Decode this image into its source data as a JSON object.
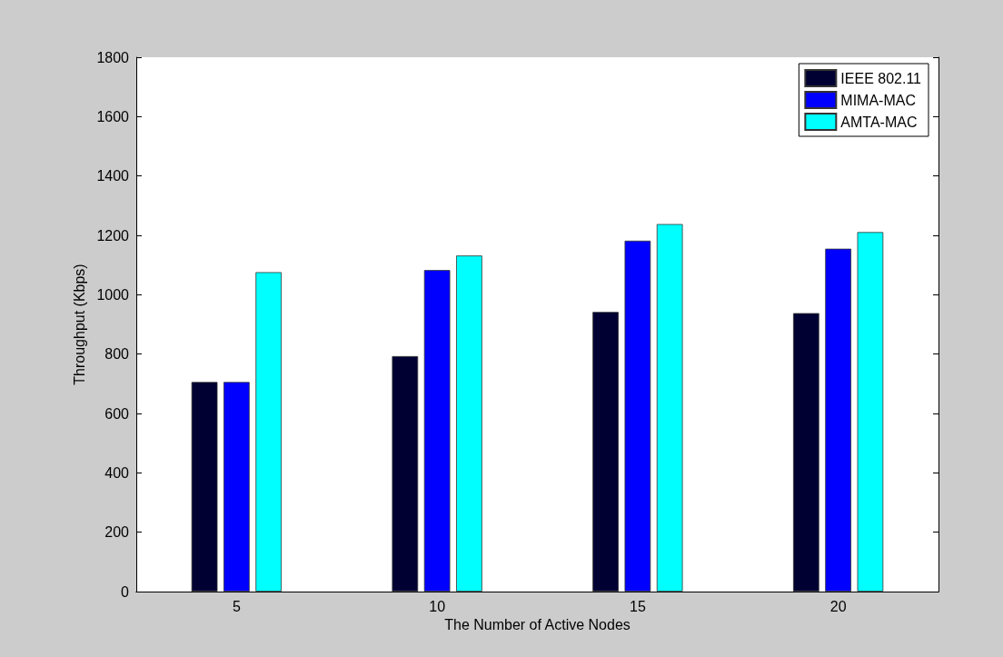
{
  "chart_data": {
    "type": "bar",
    "xlabel": "The Number of Active Nodes",
    "ylabel": "Throughput (Kbps)",
    "categories": [
      "5",
      "10",
      "15",
      "20"
    ],
    "series": [
      {
        "name": "IEEE 802.11",
        "color": "#000033",
        "values": [
          706,
          793,
          942,
          938
        ]
      },
      {
        "name": "MIMA-MAC",
        "color": "#0000ff",
        "values": [
          706,
          1083,
          1182,
          1155
        ]
      },
      {
        "name": "AMTA-MAC",
        "color": "#00ffff",
        "values": [
          1076,
          1132,
          1238,
          1211
        ]
      }
    ],
    "ylim": [
      0,
      1800
    ],
    "yticks": [
      0,
      200,
      400,
      600,
      800,
      1000,
      1200,
      1400,
      1600,
      1800
    ],
    "grid": false,
    "legend": "top right"
  }
}
